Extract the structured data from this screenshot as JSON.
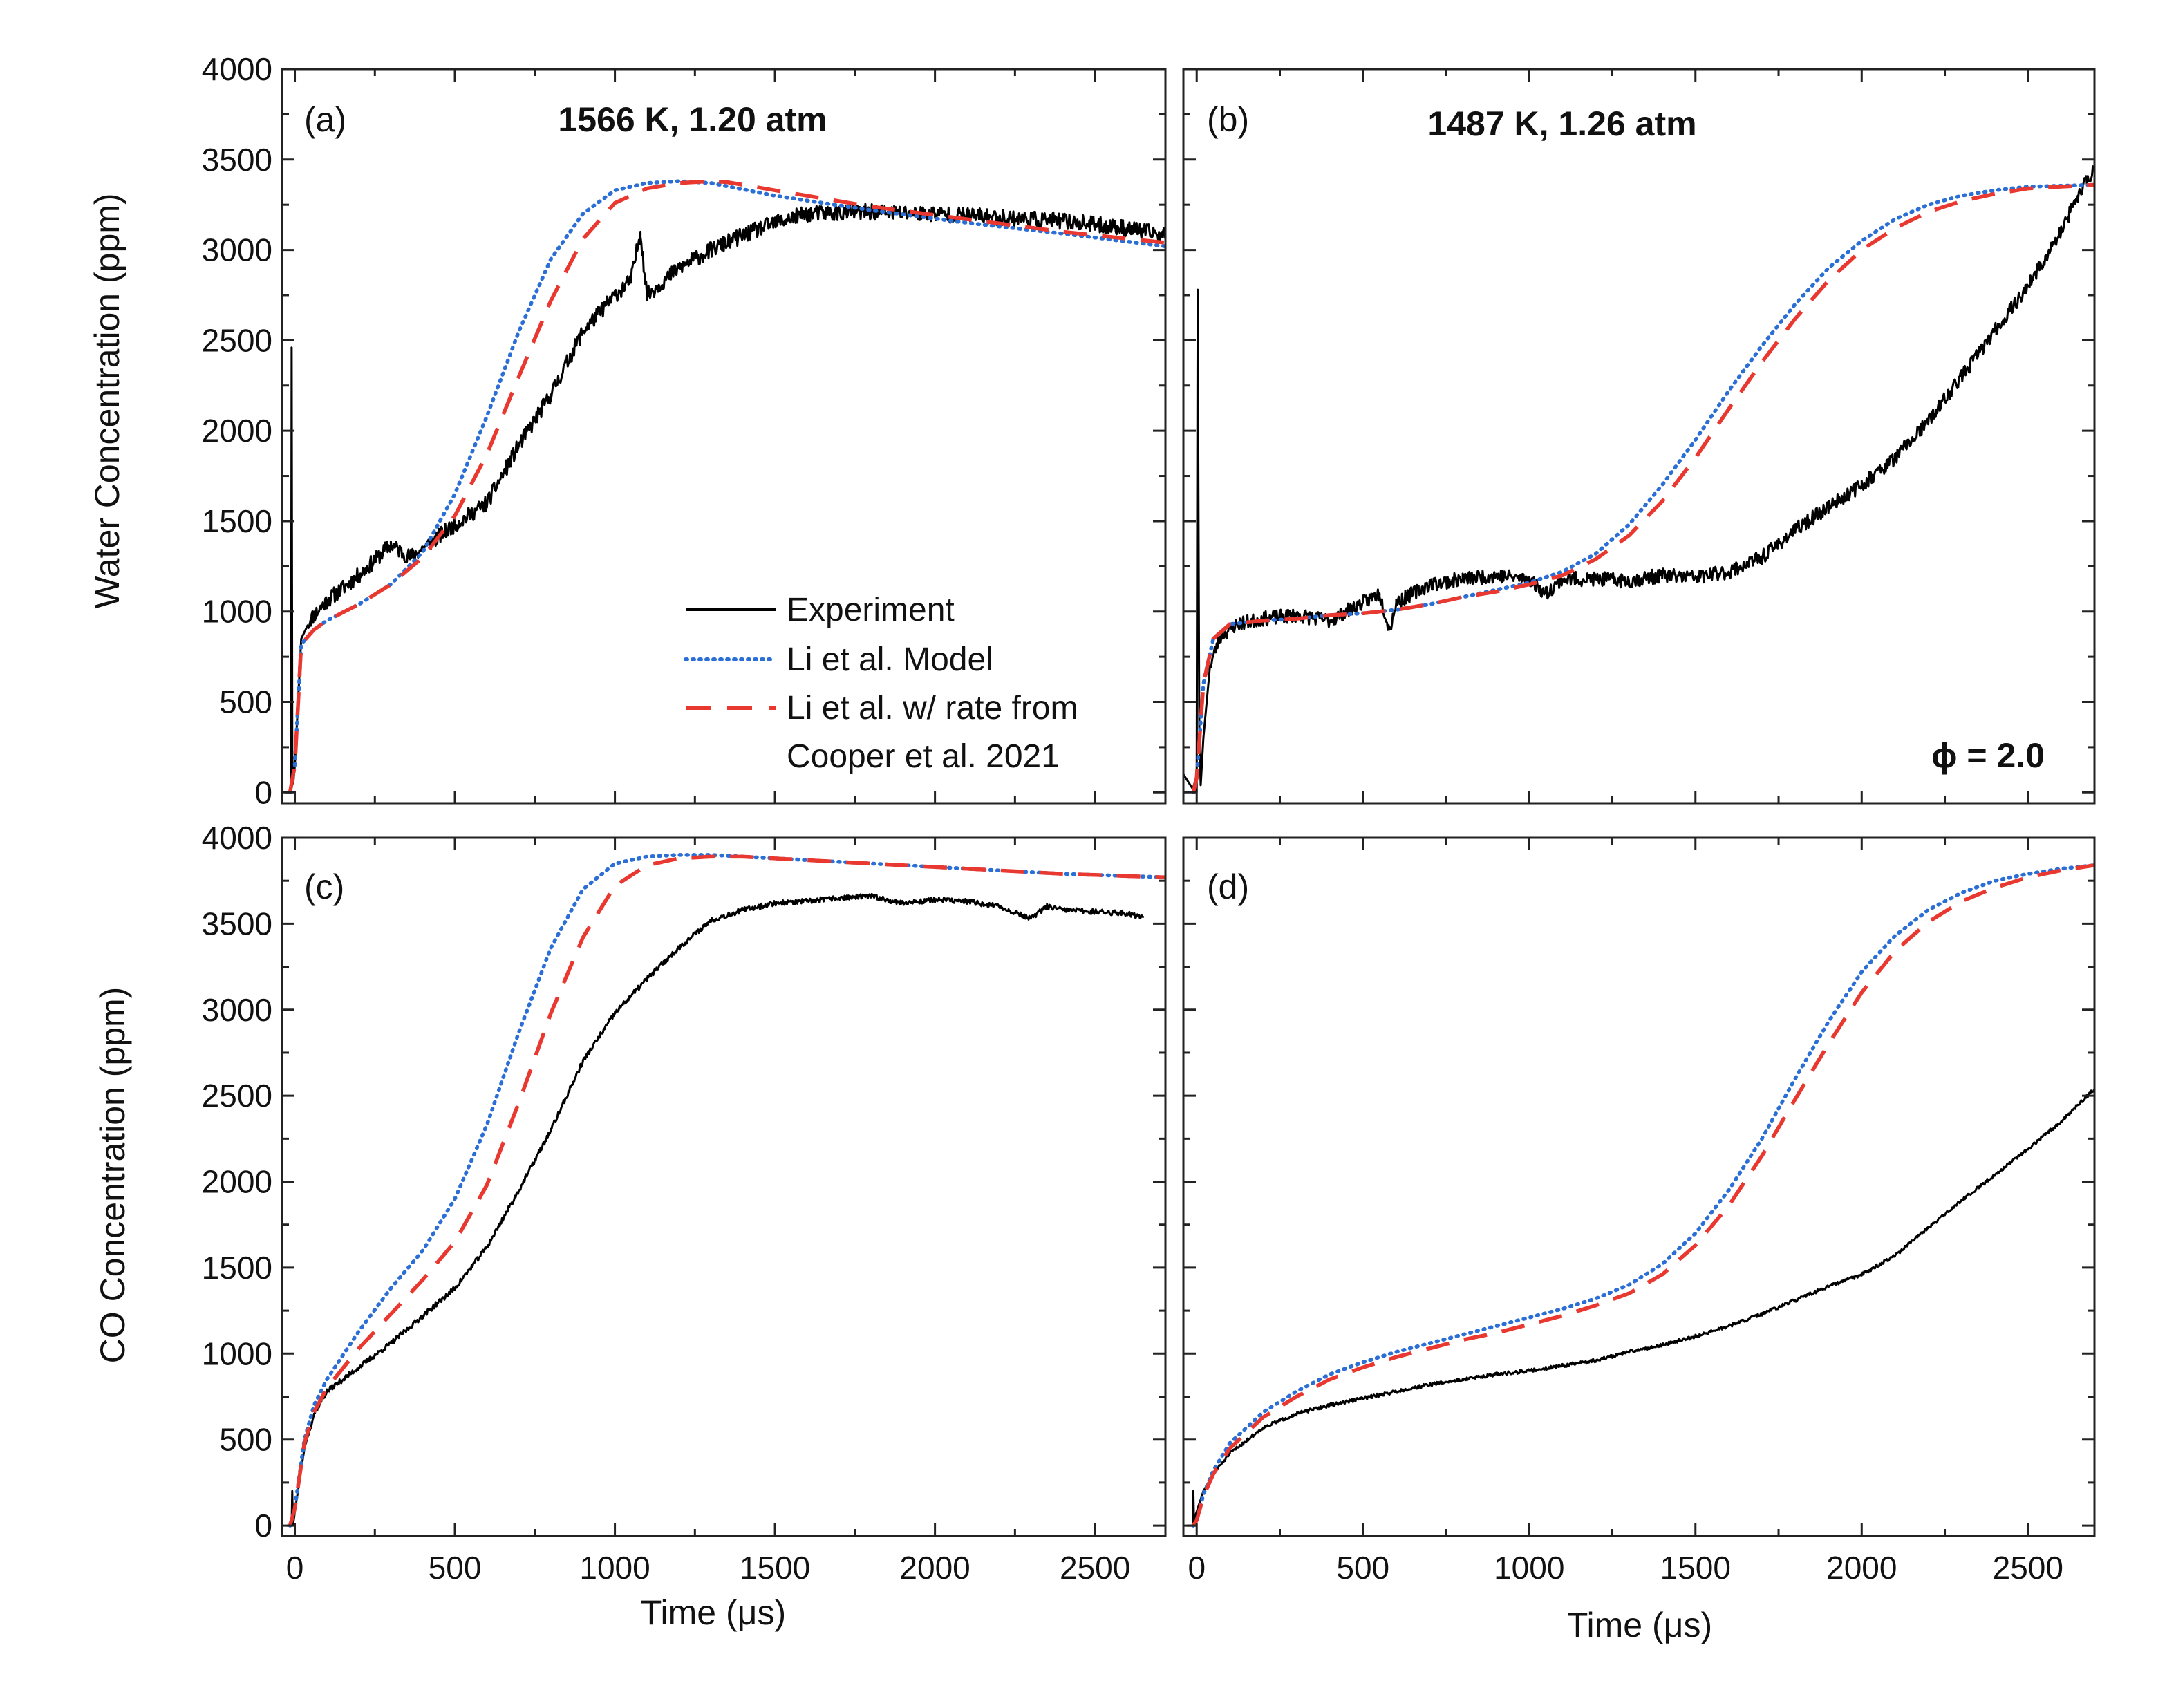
{
  "chart_data": [
    {
      "type": "line",
      "panel": "(a)",
      "title": "1566 K, 1.20 atm",
      "xlabel": "",
      "ylabel": "Water Concentration (ppm)",
      "xlim": [
        -40,
        2720
      ],
      "ylim": [
        -60,
        4000
      ],
      "yticks": [
        0,
        500,
        1000,
        1500,
        2000,
        2500,
        3000,
        3500,
        4000
      ],
      "xticks": [
        0,
        500,
        1000,
        1500,
        2000,
        2500
      ],
      "legend": {
        "position": "bottom-right",
        "entries": [
          "Experiment",
          "Li et al. Model",
          "Li et al. w/ rate from",
          "Cooper et al. 2021"
        ]
      },
      "series": [
        {
          "name": "Experiment",
          "style": "solid",
          "color": "#000000",
          "noise": 45,
          "seed": 11,
          "x": [
            -30,
            -12,
            -10,
            -8,
            -5,
            0,
            20,
            50,
            100,
            200,
            300,
            360,
            400,
            500,
            600,
            700,
            800,
            900,
            1000,
            1050,
            1080,
            1100,
            1200,
            1300,
            1400,
            1500,
            1600,
            1800,
            2000,
            2200,
            2400,
            2600,
            2720
          ],
          "y": [
            0,
            0,
            2460,
            200,
            50,
            150,
            850,
            960,
            1060,
            1200,
            1370,
            1300,
            1350,
            1480,
            1600,
            1920,
            2200,
            2550,
            2750,
            2830,
            3100,
            2750,
            2900,
            3000,
            3080,
            3150,
            3200,
            3210,
            3200,
            3180,
            3160,
            3120,
            3080
          ]
        },
        {
          "name": "Li et al. Model",
          "style": "dotted",
          "color": "#2b6fd6",
          "x": [
            -15,
            0,
            20,
            60,
            100,
            200,
            300,
            400,
            500,
            600,
            700,
            800,
            900,
            1000,
            1100,
            1200,
            1300,
            1500,
            1800,
            2100,
            2400,
            2720
          ],
          "y": [
            0,
            150,
            820,
            900,
            950,
            1040,
            1150,
            1330,
            1650,
            2080,
            2550,
            2950,
            3200,
            3330,
            3370,
            3380,
            3370,
            3300,
            3220,
            3150,
            3090,
            3020
          ]
        },
        {
          "name": "Li et al. w/ rate from Cooper et al. 2021",
          "style": "dashed",
          "color": "#e8382f",
          "x": [
            -15,
            0,
            20,
            60,
            100,
            200,
            300,
            400,
            500,
            600,
            700,
            800,
            900,
            1000,
            1100,
            1200,
            1300,
            1350,
            1500,
            1800,
            2100,
            2400,
            2720
          ],
          "y": [
            0,
            150,
            820,
            900,
            950,
            1040,
            1150,
            1300,
            1530,
            1870,
            2300,
            2720,
            3060,
            3260,
            3340,
            3370,
            3380,
            3375,
            3330,
            3240,
            3170,
            3100,
            3040
          ]
        }
      ]
    },
    {
      "type": "line",
      "panel": "(b)",
      "title": "1487 K, 1.26 atm",
      "annotation": "ϕ = 2.0",
      "xlabel": "",
      "ylabel": "",
      "xlim": [
        -40,
        2700
      ],
      "ylim": [
        -60,
        4000
      ],
      "yticks": [
        0,
        500,
        1000,
        1500,
        2000,
        2500,
        3000,
        3500,
        4000
      ],
      "xticks": [
        0,
        500,
        1000,
        1500,
        2000,
        2500
      ],
      "series": [
        {
          "name": "Experiment",
          "style": "solid",
          "color": "#000000",
          "noise": 40,
          "seed": 23,
          "x": [
            -40,
            -12,
            -5,
            0,
            3,
            8,
            12,
            20,
            40,
            70,
            120,
            200,
            300,
            400,
            500,
            550,
            580,
            600,
            700,
            800,
            900,
            1000,
            1050,
            1100,
            1200,
            1300,
            1400,
            1500,
            1600,
            1700,
            1800,
            1900,
            2000,
            2100,
            2200,
            2300,
            2400,
            2500,
            2600,
            2650,
            2700
          ],
          "y": [
            100,
            20,
            60,
            0,
            2780,
            250,
            40,
            300,
            700,
            860,
            930,
            960,
            980,
            950,
            1050,
            1100,
            900,
            1050,
            1150,
            1180,
            1200,
            1180,
            1100,
            1180,
            1180,
            1170,
            1200,
            1190,
            1220,
            1300,
            1450,
            1580,
            1700,
            1850,
            2050,
            2300,
            2550,
            2800,
            3100,
            3300,
            3450
          ]
        },
        {
          "name": "Li et al. Model",
          "style": "dotted",
          "color": "#2b6fd6",
          "x": [
            -10,
            0,
            20,
            50,
            100,
            200,
            300,
            400,
            500,
            600,
            700,
            800,
            900,
            1000,
            1100,
            1200,
            1300,
            1400,
            1500,
            1600,
            1700,
            1800,
            1900,
            2000,
            2100,
            2200,
            2300,
            2400,
            2500,
            2600,
            2700
          ],
          "y": [
            0,
            80,
            600,
            850,
            930,
            950,
            960,
            980,
            990,
            1010,
            1040,
            1080,
            1120,
            1160,
            1220,
            1320,
            1480,
            1700,
            1950,
            2220,
            2470,
            2700,
            2900,
            3050,
            3170,
            3250,
            3300,
            3330,
            3350,
            3355,
            3360
          ]
        },
        {
          "name": "Li et al. w/ rate from Cooper et al. 2021",
          "style": "dashed",
          "color": "#e8382f",
          "x": [
            -10,
            0,
            20,
            50,
            100,
            200,
            300,
            400,
            500,
            600,
            700,
            800,
            900,
            1000,
            1100,
            1200,
            1300,
            1400,
            1500,
            1600,
            1700,
            1800,
            1900,
            2000,
            2100,
            2200,
            2300,
            2400,
            2500,
            2600,
            2700
          ],
          "y": [
            0,
            80,
            600,
            850,
            930,
            950,
            960,
            980,
            990,
            1010,
            1040,
            1080,
            1110,
            1150,
            1200,
            1290,
            1420,
            1610,
            1850,
            2120,
            2380,
            2620,
            2830,
            3000,
            3120,
            3210,
            3270,
            3310,
            3340,
            3350,
            3360
          ]
        }
      ]
    },
    {
      "type": "line",
      "panel": "(c)",
      "title": "",
      "xlabel": "Time (μs)",
      "ylabel": "CO Concentration (ppm)",
      "xlim": [
        -40,
        2720
      ],
      "ylim": [
        -60,
        4000
      ],
      "yticks": [
        0,
        500,
        1000,
        1500,
        2000,
        2500,
        3000,
        3500,
        4000
      ],
      "xticks": [
        0,
        500,
        1000,
        1500,
        2000,
        2500
      ],
      "series": [
        {
          "name": "Experiment",
          "style": "solid",
          "color": "#000000",
          "noise": 15,
          "seed": 37,
          "x": [
            -25,
            -10,
            -8,
            -6,
            0,
            30,
            60,
            100,
            200,
            300,
            400,
            500,
            600,
            700,
            800,
            900,
            1000,
            1100,
            1200,
            1300,
            1400,
            1500,
            1600,
            1700,
            1800,
            1900,
            2000,
            2100,
            2200,
            2300,
            2350,
            2400,
            2500,
            2600,
            2650
          ],
          "y": [
            0,
            0,
            200,
            0,
            80,
            450,
            650,
            780,
            920,
            1060,
            1220,
            1380,
            1620,
            1950,
            2300,
            2700,
            2980,
            3180,
            3360,
            3520,
            3580,
            3620,
            3630,
            3650,
            3660,
            3620,
            3640,
            3630,
            3600,
            3530,
            3600,
            3580,
            3570,
            3560,
            3540
          ]
        },
        {
          "name": "Li et al. Model",
          "style": "dotted",
          "color": "#2b6fd6",
          "x": [
            -15,
            0,
            30,
            60,
            100,
            200,
            300,
            400,
            500,
            600,
            700,
            800,
            900,
            1000,
            1100,
            1200,
            1300,
            1400,
            1600,
            1800,
            2000,
            2200,
            2400,
            2720
          ],
          "y": [
            0,
            100,
            500,
            700,
            850,
            1130,
            1380,
            1600,
            1900,
            2330,
            2870,
            3360,
            3700,
            3850,
            3890,
            3900,
            3900,
            3890,
            3870,
            3850,
            3830,
            3810,
            3790,
            3770
          ]
        },
        {
          "name": "Li et al. w/ rate from Cooper et al. 2021",
          "style": "dashed",
          "color": "#e8382f",
          "x": [
            -15,
            0,
            30,
            60,
            100,
            200,
            300,
            400,
            500,
            600,
            700,
            800,
            900,
            1000,
            1100,
            1200,
            1300,
            1400,
            1600,
            1800,
            2000,
            2200,
            2400,
            2720
          ],
          "y": [
            0,
            100,
            480,
            660,
            800,
            1030,
            1230,
            1430,
            1650,
            1980,
            2460,
            2980,
            3420,
            3720,
            3840,
            3880,
            3890,
            3890,
            3870,
            3850,
            3830,
            3810,
            3790,
            3770
          ]
        }
      ]
    },
    {
      "type": "line",
      "panel": "(d)",
      "title": "",
      "xlabel": "Time (μs)",
      "ylabel": "",
      "xlim": [
        -40,
        2700
      ],
      "ylim": [
        -60,
        4000
      ],
      "yticks": [
        0,
        500,
        1000,
        1500,
        2000,
        2500,
        3000,
        3500,
        4000
      ],
      "xticks": [
        0,
        500,
        1000,
        1500,
        2000,
        2500
      ],
      "series": [
        {
          "name": "Experiment",
          "style": "solid",
          "color": "#000000",
          "noise": 10,
          "seed": 51,
          "x": [
            -30,
            -12,
            -10,
            -8,
            -5,
            0,
            20,
            50,
            100,
            200,
            300,
            400,
            500,
            600,
            700,
            800,
            900,
            1000,
            1100,
            1200,
            1300,
            1400,
            1500,
            1600,
            1700,
            1800,
            1900,
            2000,
            2100,
            2200,
            2300,
            2400,
            2500,
            2600,
            2700
          ],
          "y": [
            0,
            0,
            200,
            0,
            50,
            80,
            200,
            300,
            420,
            570,
            650,
            700,
            740,
            780,
            820,
            850,
            880,
            900,
            930,
            960,
            1010,
            1050,
            1100,
            1160,
            1230,
            1310,
            1390,
            1460,
            1570,
            1730,
            1890,
            2040,
            2190,
            2350,
            2540
          ]
        },
        {
          "name": "Li et al. Model",
          "style": "dotted",
          "color": "#2b6fd6",
          "x": [
            -10,
            0,
            20,
            50,
            100,
            200,
            300,
            400,
            500,
            600,
            700,
            800,
            900,
            1000,
            1100,
            1200,
            1300,
            1400,
            1500,
            1600,
            1700,
            1800,
            1900,
            2000,
            2100,
            2200,
            2300,
            2400,
            2500,
            2600,
            2700
          ],
          "y": [
            0,
            30,
            180,
            320,
            480,
            660,
            780,
            880,
            950,
            1010,
            1060,
            1110,
            1160,
            1210,
            1260,
            1320,
            1400,
            1520,
            1700,
            1950,
            2250,
            2600,
            2930,
            3220,
            3430,
            3580,
            3680,
            3750,
            3790,
            3820,
            3840
          ]
        },
        {
          "name": "Li et al. w/ rate from Cooper et al. 2021",
          "style": "dashed",
          "color": "#e8382f",
          "x": [
            -10,
            0,
            20,
            50,
            100,
            200,
            300,
            400,
            500,
            600,
            700,
            800,
            900,
            1000,
            1100,
            1200,
            1300,
            1400,
            1500,
            1600,
            1700,
            1800,
            1900,
            2000,
            2100,
            2200,
            2300,
            2400,
            2500,
            2600,
            2700
          ],
          "y": [
            0,
            30,
            170,
            300,
            450,
            630,
            750,
            850,
            920,
            980,
            1030,
            1080,
            1120,
            1170,
            1220,
            1280,
            1350,
            1460,
            1630,
            1860,
            2150,
            2480,
            2800,
            3100,
            3340,
            3510,
            3630,
            3710,
            3770,
            3810,
            3840
          ]
        }
      ]
    }
  ]
}
